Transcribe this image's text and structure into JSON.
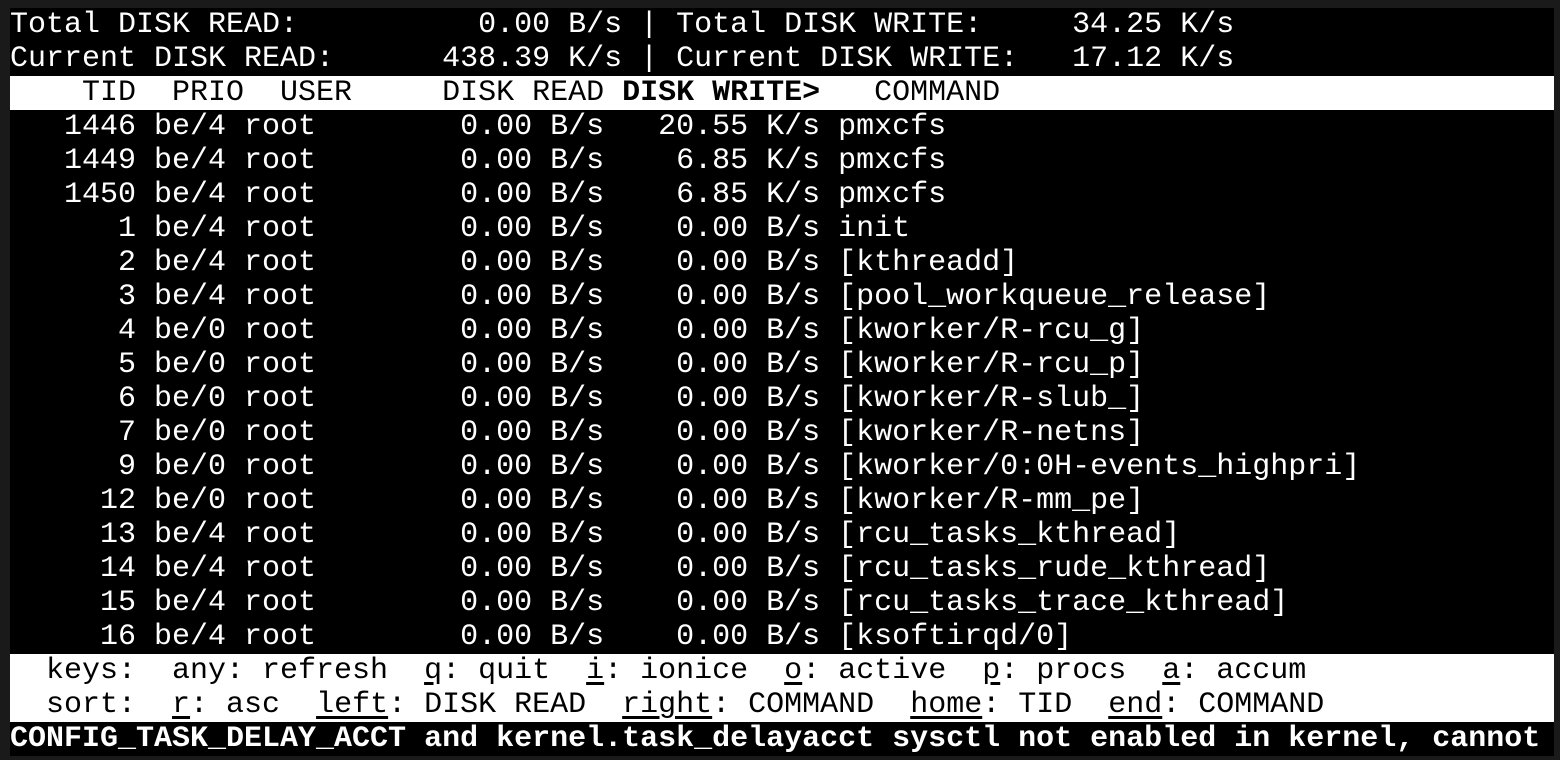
{
  "colors": {
    "terminal_background": "#000000",
    "terminal_foreground": "#ffffff",
    "inverted_background": "#ffffff",
    "inverted_foreground": "#000000",
    "window_margin": "#1a1a1a"
  },
  "summary": {
    "separator": "|",
    "total_read_label": "Total DISK READ:",
    "total_read_value": "0.00 B/s",
    "total_write_label": "Total DISK WRITE:",
    "total_write_value": "34.25 K/s",
    "current_read_label": "Current DISK READ:",
    "current_read_value": "438.39 K/s",
    "current_write_label": "Current DISK WRITE:",
    "current_write_value": "17.12 K/s"
  },
  "table": {
    "header": {
      "pre": "    TID  PRIO  USER     DISK READ ",
      "sort_column": "DISK WRITE>",
      "post": "   COMMAND"
    },
    "columns": [
      "TID",
      "PRIO",
      "USER",
      "DISK READ",
      "DISK WRITE",
      "COMMAND"
    ],
    "rows": [
      {
        "tid": "1446",
        "prio": "be/4",
        "user": "root",
        "disk_read": "0.00 B/s",
        "disk_write": "20.55 K/s",
        "command": "pmxcfs"
      },
      {
        "tid": "1449",
        "prio": "be/4",
        "user": "root",
        "disk_read": "0.00 B/s",
        "disk_write": "6.85 K/s",
        "command": "pmxcfs"
      },
      {
        "tid": "1450",
        "prio": "be/4",
        "user": "root",
        "disk_read": "0.00 B/s",
        "disk_write": "6.85 K/s",
        "command": "pmxcfs"
      },
      {
        "tid": "1",
        "prio": "be/4",
        "user": "root",
        "disk_read": "0.00 B/s",
        "disk_write": "0.00 B/s",
        "command": "init"
      },
      {
        "tid": "2",
        "prio": "be/4",
        "user": "root",
        "disk_read": "0.00 B/s",
        "disk_write": "0.00 B/s",
        "command": "[kthreadd]"
      },
      {
        "tid": "3",
        "prio": "be/4",
        "user": "root",
        "disk_read": "0.00 B/s",
        "disk_write": "0.00 B/s",
        "command": "[pool_workqueue_release]"
      },
      {
        "tid": "4",
        "prio": "be/0",
        "user": "root",
        "disk_read": "0.00 B/s",
        "disk_write": "0.00 B/s",
        "command": "[kworker/R-rcu_g]"
      },
      {
        "tid": "5",
        "prio": "be/0",
        "user": "root",
        "disk_read": "0.00 B/s",
        "disk_write": "0.00 B/s",
        "command": "[kworker/R-rcu_p]"
      },
      {
        "tid": "6",
        "prio": "be/0",
        "user": "root",
        "disk_read": "0.00 B/s",
        "disk_write": "0.00 B/s",
        "command": "[kworker/R-slub_]"
      },
      {
        "tid": "7",
        "prio": "be/0",
        "user": "root",
        "disk_read": "0.00 B/s",
        "disk_write": "0.00 B/s",
        "command": "[kworker/R-netns]"
      },
      {
        "tid": "9",
        "prio": "be/0",
        "user": "root",
        "disk_read": "0.00 B/s",
        "disk_write": "0.00 B/s",
        "command": "[kworker/0:0H-events_highpri]"
      },
      {
        "tid": "12",
        "prio": "be/0",
        "user": "root",
        "disk_read": "0.00 B/s",
        "disk_write": "0.00 B/s",
        "command": "[kworker/R-mm_pe]"
      },
      {
        "tid": "13",
        "prio": "be/4",
        "user": "root",
        "disk_read": "0.00 B/s",
        "disk_write": "0.00 B/s",
        "command": "[rcu_tasks_kthread]"
      },
      {
        "tid": "14",
        "prio": "be/4",
        "user": "root",
        "disk_read": "0.00 B/s",
        "disk_write": "0.00 B/s",
        "command": "[rcu_tasks_rude_kthread]"
      },
      {
        "tid": "15",
        "prio": "be/4",
        "user": "root",
        "disk_read": "0.00 B/s",
        "disk_write": "0.00 B/s",
        "command": "[rcu_tasks_trace_kthread]"
      },
      {
        "tid": "16",
        "prio": "be/4",
        "user": "root",
        "disk_read": "0.00 B/s",
        "disk_write": "0.00 B/s",
        "command": "[ksoftirqd/0]"
      }
    ]
  },
  "help": {
    "keys_line": [
      {
        "t": "  keys:  any: refresh  "
      },
      {
        "t": "q",
        "u": true
      },
      {
        "t": ": quit  "
      },
      {
        "t": "i",
        "u": true
      },
      {
        "t": ": ionice  "
      },
      {
        "t": "o",
        "u": true
      },
      {
        "t": ": active  "
      },
      {
        "t": "p",
        "u": true
      },
      {
        "t": ": procs  "
      },
      {
        "t": "a",
        "u": true
      },
      {
        "t": ": accum"
      }
    ],
    "sort_line": [
      {
        "t": "  sort:  "
      },
      {
        "t": "r",
        "u": true
      },
      {
        "t": ": asc  "
      },
      {
        "t": "left",
        "u": true
      },
      {
        "t": ": DISK READ  "
      },
      {
        "t": "right",
        "u": true
      },
      {
        "t": ": COMMAND  "
      },
      {
        "t": "home",
        "u": true
      },
      {
        "t": ": TID  "
      },
      {
        "t": "end",
        "u": true
      },
      {
        "t": ": COMMAND"
      }
    ]
  },
  "status_message": "CONFIG_TASK_DELAY_ACCT and kernel.task_delayacct sysctl not enabled in kernel, cannot"
}
